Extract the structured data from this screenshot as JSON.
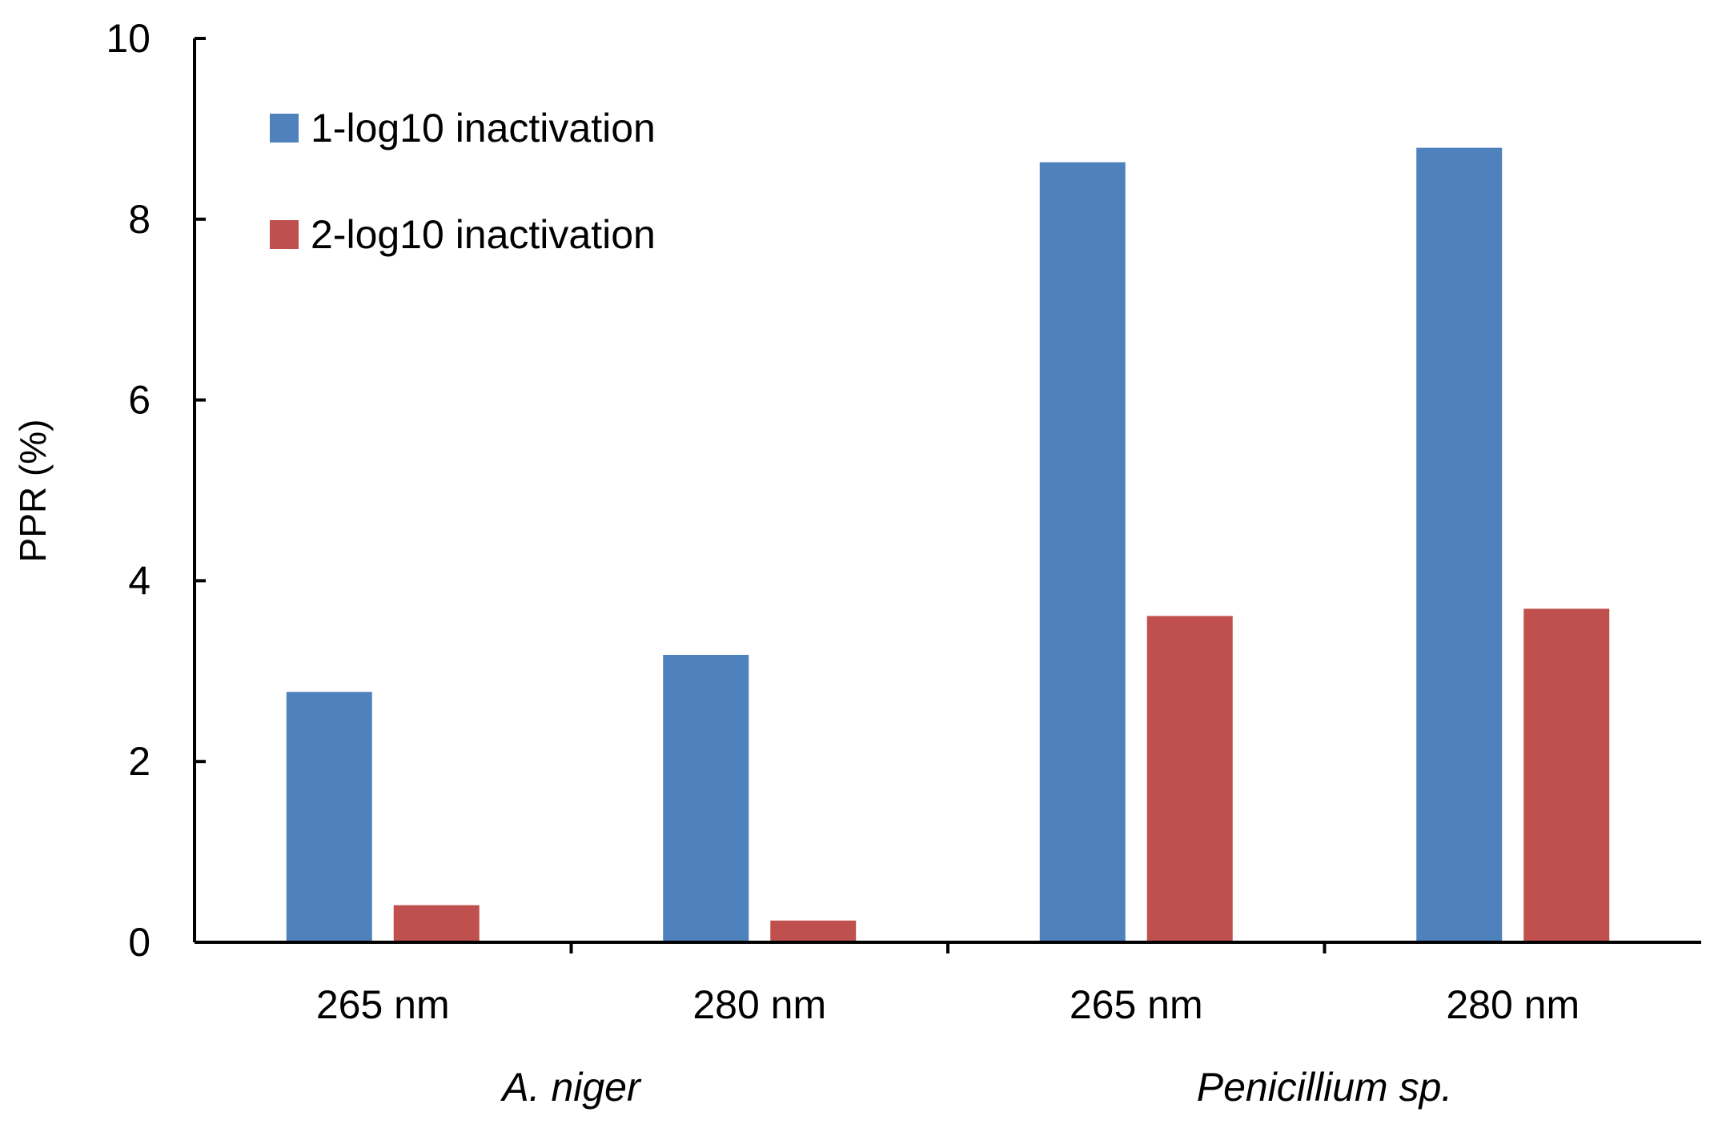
{
  "chart_data": {
    "type": "bar",
    "ylabel": "PPR (%)",
    "xlabel": "",
    "ylim": [
      0,
      10
    ],
    "yticks": [
      0,
      2,
      4,
      6,
      8,
      10
    ],
    "categories": [
      "265 nm",
      "280 nm",
      "265 nm",
      "280 nm"
    ],
    "groups": [
      {
        "label": "A. niger",
        "categories": [
          0,
          1
        ]
      },
      {
        "label": "Penicillium sp.",
        "categories": [
          2,
          3
        ]
      }
    ],
    "series": [
      {
        "name": "1-log10 inactivation",
        "color": "#4f81bd",
        "values": [
          2.77,
          3.18,
          8.63,
          8.79
        ]
      },
      {
        "name": "2-log10 inactivation",
        "color": "#c0504d",
        "values": [
          0.41,
          0.24,
          3.61,
          3.69
        ]
      }
    ],
    "legend_position": "top-left",
    "grid": false
  }
}
